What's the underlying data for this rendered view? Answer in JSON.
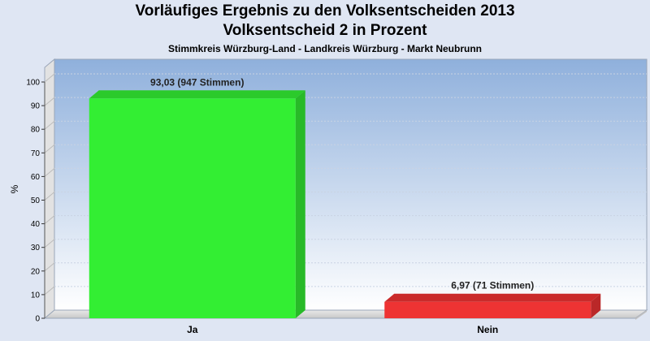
{
  "chart_data": {
    "type": "bar",
    "title": "Vorläufiges Ergebnis zu den Volksentscheiden 2013",
    "subtitle": "Volksentscheid 2 in Prozent",
    "subtitle2": "Stimmkreis Würzburg-Land - Landkreis Würzburg - Markt Neubrunn",
    "ylabel": "%",
    "ylim": [
      0,
      100
    ],
    "yticks": [
      0,
      10,
      20,
      30,
      40,
      50,
      60,
      70,
      80,
      90,
      100
    ],
    "categories": [
      "Ja",
      "Nein"
    ],
    "values": [
      93.03,
      6.97
    ],
    "data_labels": [
      "93,03 (947 Stimmen)",
      "6,97 (71 Stimmen)"
    ],
    "colors": [
      "#33ee33",
      "#ee3333"
    ],
    "grid": true,
    "style": "3d"
  }
}
